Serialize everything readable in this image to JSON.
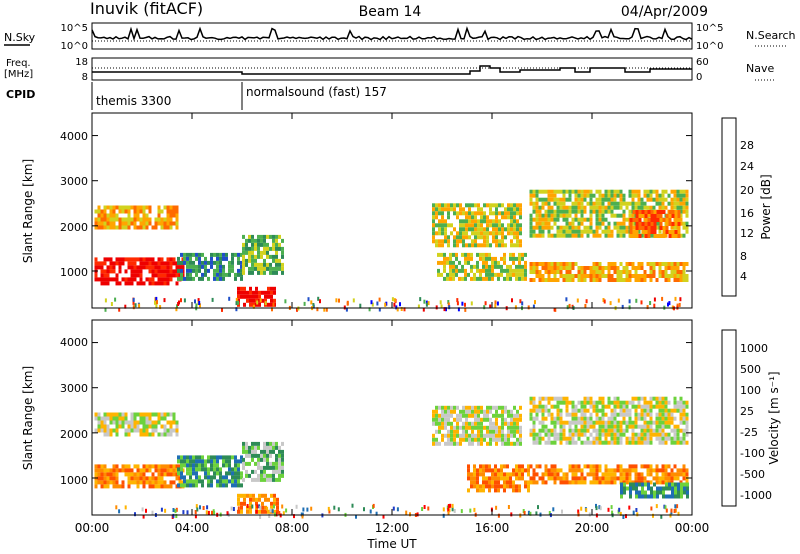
{
  "header": {
    "station": "Inuvik (fitACF)",
    "beam": "Beam 14",
    "date": "04/Apr/2009"
  },
  "noise_panel": {
    "left_label": "N.Sky",
    "right_label": "N.Search",
    "left_ticks": [
      "10^5",
      "10^0"
    ],
    "right_ticks": [
      "10^5",
      "10^0"
    ]
  },
  "freq_panel": {
    "left_label_line1": "Freq.",
    "left_label_line2": "[MHz]",
    "right_label": "Nave",
    "left_ticks": [
      "18",
      "8"
    ],
    "right_ticks": [
      "60",
      "0"
    ]
  },
  "cpid": {
    "label": "CPID",
    "segments": [
      {
        "text": "themis 3300",
        "start_hour": 0
      },
      {
        "text": "normalsound (fast) 157",
        "start_hour": 6
      }
    ]
  },
  "colors": {
    "power_scale": [
      "#0000ff",
      "#1f4fc8",
      "#2e8b57",
      "#4caf50",
      "#d2d21e",
      "#ffa500",
      "#ff6a00",
      "#ff2a00",
      "#ee0000"
    ],
    "velocity_scale": [
      "#1e3cc8",
      "#1e6eb4",
      "#2e8b57",
      "#6cd23c",
      "#c8c8c8",
      "#ffb400",
      "#ff8c00",
      "#ff5000",
      "#ff0000"
    ]
  },
  "chart_data": [
    {
      "type": "heatmap",
      "panel": "power",
      "ylabel": "Slant Range [km]",
      "ylim": [
        180,
        4500
      ],
      "xlim": [
        0,
        24
      ],
      "yticks": [
        "1000",
        "2000",
        "3000",
        "4000"
      ],
      "colorbar_label": "Power [dB]",
      "colorbar_ticks": [
        "4",
        "8",
        "12",
        "16",
        "20",
        "24",
        "28"
      ],
      "echo_regions": [
        {
          "t0": 0.1,
          "t1": 3.4,
          "r0": 2000,
          "r1": 2450,
          "level": 5
        },
        {
          "t0": 0.1,
          "t1": 3.6,
          "r0": 750,
          "r1": 1300,
          "level": 8
        },
        {
          "t0": 3.4,
          "t1": 6.0,
          "r0": 800,
          "r1": 1400,
          "level": 2
        },
        {
          "t0": 5.8,
          "t1": 7.3,
          "r0": 250,
          "r1": 650,
          "level": 8
        },
        {
          "t0": 6.0,
          "t1": 7.6,
          "r0": 1000,
          "r1": 1800,
          "level": 3
        },
        {
          "t0": 13.6,
          "t1": 17.2,
          "r0": 1600,
          "r1": 2500,
          "level": 4
        },
        {
          "t0": 13.8,
          "t1": 17.4,
          "r0": 800,
          "r1": 1400,
          "level": 4
        },
        {
          "t0": 17.5,
          "t1": 23.8,
          "r0": 1800,
          "r1": 2800,
          "level": 4
        },
        {
          "t0": 17.5,
          "t1": 23.8,
          "r0": 800,
          "r1": 1200,
          "level": 5
        },
        {
          "t0": 21.5,
          "t1": 23.5,
          "r0": 1800,
          "r1": 2350,
          "level": 6
        }
      ]
    },
    {
      "type": "heatmap",
      "panel": "velocity",
      "ylabel": "Slant Range [km]",
      "xlabel": "Time UT",
      "ylim": [
        180,
        4500
      ],
      "xlim": [
        0,
        24
      ],
      "yticks": [
        "1000",
        "2000",
        "3000",
        "4000"
      ],
      "xticks": [
        "00:00",
        "04:00",
        "08:00",
        "12:00",
        "16:00",
        "20:00",
        "00:00"
      ],
      "colorbar_label": "Velocity [m s⁻¹]",
      "colorbar_ticks": [
        "1000",
        "500",
        "100",
        "25",
        "-25",
        "-100",
        "-500",
        "-1000"
      ],
      "echo_regions": [
        {
          "t0": 0.1,
          "t1": 3.4,
          "r0": 2000,
          "r1": 2450,
          "level": 4
        },
        {
          "t0": 0.1,
          "t1": 3.6,
          "r0": 800,
          "r1": 1300,
          "level": 6
        },
        {
          "t0": 3.4,
          "t1": 6.0,
          "r0": 800,
          "r1": 1500,
          "level": 2
        },
        {
          "t0": 5.8,
          "t1": 7.4,
          "r0": 250,
          "r1": 650,
          "level": 6
        },
        {
          "t0": 6.0,
          "t1": 7.6,
          "r0": 1000,
          "r1": 1800,
          "level": 3
        },
        {
          "t0": 13.6,
          "t1": 17.2,
          "r0": 1800,
          "r1": 2600,
          "level": 4
        },
        {
          "t0": 15.0,
          "t1": 17.5,
          "r0": 700,
          "r1": 1300,
          "level": 6
        },
        {
          "t0": 17.5,
          "t1": 23.8,
          "r0": 1800,
          "r1": 2800,
          "level": 4
        },
        {
          "t0": 17.5,
          "t1": 23.8,
          "r0": 900,
          "r1": 1300,
          "level": 6
        },
        {
          "t0": 21.0,
          "t1": 23.8,
          "r0": 600,
          "r1": 900,
          "level": 2
        }
      ]
    }
  ]
}
